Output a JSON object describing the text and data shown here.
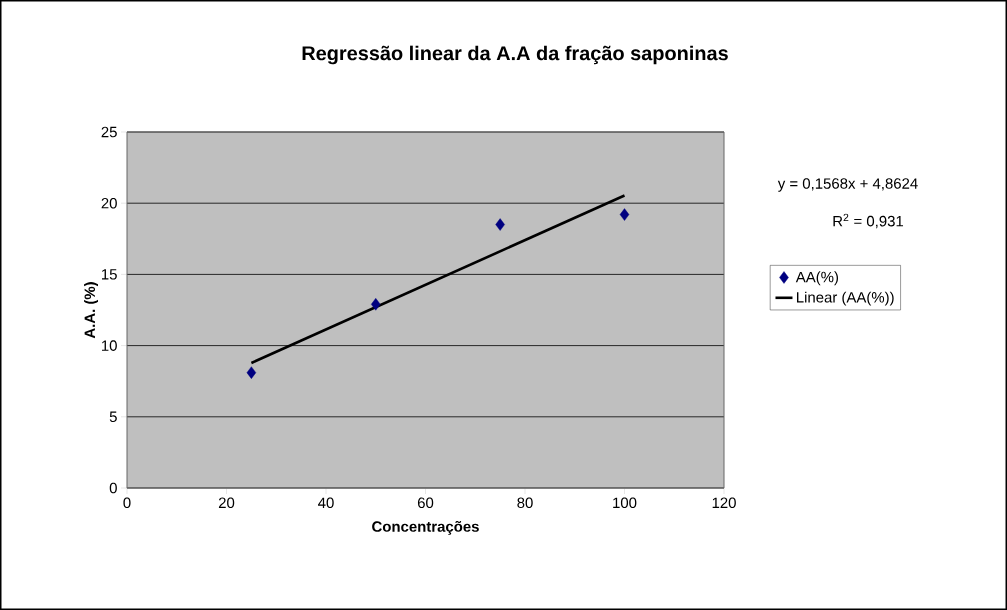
{
  "chart_data": {
    "type": "scatter",
    "title": "Regressão linear da A.A da fração saponinas",
    "xlabel": "Concentrações",
    "ylabel": "A.A. (%)",
    "annotations": [
      "y = 0,1568x + 4,8624",
      "R$^{2}$ = 0,931"
    ],
    "series": [
      {
        "name": "AA(%)",
        "color": "#000080",
        "marker": "diamond",
        "x": [
          25,
          50,
          75,
          100
        ],
        "values": [
          8.1,
          12.9,
          18.5,
          19.2
        ]
      },
      {
        "name": "Linear (AA(%))",
        "type": "line",
        "color": "#000000",
        "marker": "none",
        "line_style": "solid",
        "x": [
          25,
          100
        ],
        "values": [
          8.78,
          20.54
        ]
      }
    ],
    "xlim": [
      0,
      120
    ],
    "xticks": [
      0,
      20,
      40,
      60,
      80,
      100,
      120
    ],
    "ylim": [
      0,
      25
    ],
    "yticks": [
      0,
      5,
      10,
      15,
      20,
      25
    ],
    "grid": "y",
    "legend": "right"
  }
}
